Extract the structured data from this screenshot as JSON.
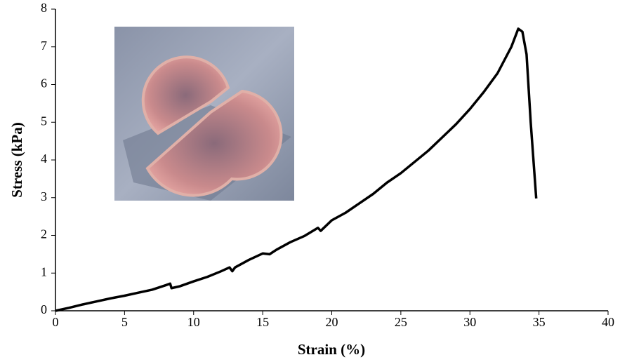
{
  "chart_data": {
    "type": "line",
    "x_label": "Strain (%)",
    "y_label": "Stress (kPa)",
    "xlim": [
      0,
      40
    ],
    "xticks": [
      0,
      5,
      10,
      15,
      20,
      25,
      30,
      35,
      40
    ],
    "ylim": [
      0,
      8
    ],
    "yticks": [
      0,
      1,
      2,
      3,
      4,
      5,
      6,
      7,
      8
    ],
    "grid": false,
    "series": [
      {
        "color": "#000000",
        "x": [
          0,
          1,
          2,
          3,
          4,
          5,
          6,
          7,
          8,
          8.3,
          8.4,
          9,
          10,
          11,
          12,
          12.6,
          12.8,
          13,
          14,
          15,
          15.5,
          16,
          17,
          18,
          19,
          19.2,
          20,
          20.5,
          21,
          22,
          23,
          24,
          25,
          26,
          27,
          28,
          29,
          30,
          31,
          32,
          33,
          33.5,
          33.8,
          34.1,
          34.4,
          34.8
        ],
        "values": [
          0,
          0.08,
          0.17,
          0.25,
          0.33,
          0.4,
          0.48,
          0.56,
          0.68,
          0.72,
          0.6,
          0.65,
          0.78,
          0.9,
          1.05,
          1.15,
          1.05,
          1.15,
          1.35,
          1.52,
          1.5,
          1.62,
          1.82,
          1.98,
          2.2,
          2.12,
          2.4,
          2.5,
          2.6,
          2.85,
          3.1,
          3.4,
          3.65,
          3.95,
          4.25,
          4.6,
          4.95,
          5.35,
          5.8,
          6.3,
          7.0,
          7.48,
          7.4,
          6.8,
          5.0,
          2.98
        ]
      }
    ]
  }
}
